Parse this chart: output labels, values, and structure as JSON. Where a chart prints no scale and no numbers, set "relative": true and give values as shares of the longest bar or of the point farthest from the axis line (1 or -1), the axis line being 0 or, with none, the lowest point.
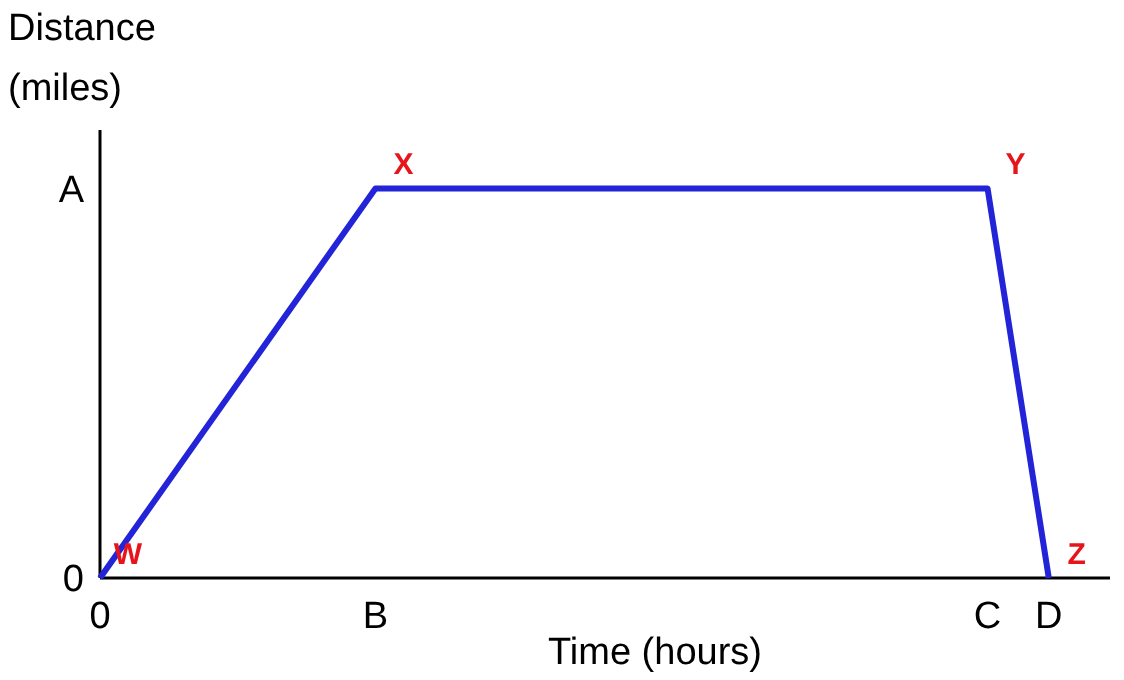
{
  "chart_data": {
    "type": "line",
    "xlabel": "Time (hours)",
    "ylabel": "Distance\n(miles)",
    "relative": true,
    "categories": [
      "0",
      null,
      null,
      null,
      null,
      null,
      null,
      null,
      null,
      "B",
      null,
      null,
      null,
      null,
      null,
      null,
      null,
      null,
      null,
      null,
      null,
      null,
      null,
      null,
      null,
      null,
      null,
      null,
      null,
      "C",
      null,
      "D",
      null,
      null
    ],
    "series": [
      {
        "color": "#2323d8",
        "values": [
          0,
          null,
          null,
          null,
          null,
          null,
          null,
          null,
          null,
          1,
          null,
          null,
          null,
          null,
          null,
          null,
          null,
          null,
          null,
          null,
          null,
          null,
          null,
          null,
          null,
          null,
          null,
          null,
          null,
          1,
          null,
          0,
          null,
          null
        ]
      }
    ],
    "marker": "none",
    "line_style": "solid",
    "annotations": [
      "A",
      "0",
      {
        "text": "W",
        "x": "0",
        "y": 0
      },
      {
        "text": "X",
        "x": "B",
        "y": 1
      },
      {
        "text": "Y",
        "x": "C",
        "y": 1
      },
      {
        "text": "Z",
        "x": "D",
        "y": 0
      }
    ]
  }
}
